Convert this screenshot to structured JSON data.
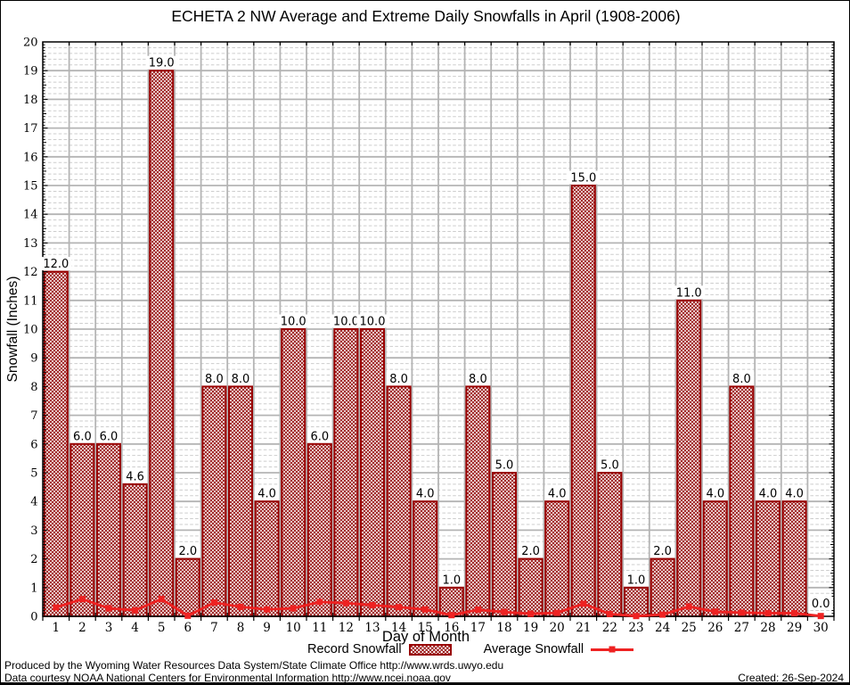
{
  "title": "ECHETA 2 NW Average and Extreme Daily Snowfalls in April (1908-2006)",
  "axes": {
    "xlabel": "Day of Month",
    "ylabel": "Snowfall (Inches)"
  },
  "legend": {
    "record_label": "Record Snowfall",
    "average_label": "Average Snowfall"
  },
  "footer": {
    "line1": "Produced by the Wyoming Water Resources Data System/State Climate Office http://www.wrds.uwyo.edu",
    "line2": "Data courtesy NOAA National Centers for Environmental Information http://www.ncei.noaa.gov",
    "created": "Created: 26-Sep-2024"
  },
  "colors": {
    "bar_border": "#990000",
    "bar_hatch": "#9c1c1c",
    "avg_line": "#ee2222",
    "grid_major": "#b4b4b4",
    "grid_minor": "#cdcdcd",
    "axis": "#000000"
  },
  "chart_data": {
    "type": "bar",
    "title": "ECHETA 2 NW Average and Extreme Daily Snowfalls in April (1908-2006)",
    "xlabel": "Day of Month",
    "ylabel": "Snowfall (Inches)",
    "ylim": [
      0,
      20
    ],
    "ytick_step": 1,
    "grid": true,
    "legend_position": "bottom",
    "categories": [
      1,
      2,
      3,
      4,
      5,
      6,
      7,
      8,
      9,
      10,
      11,
      12,
      13,
      14,
      15,
      16,
      17,
      18,
      19,
      20,
      21,
      22,
      23,
      24,
      25,
      26,
      27,
      28,
      29,
      30
    ],
    "series": [
      {
        "name": "Record Snowfall",
        "type": "bar",
        "values": [
          12.0,
          6.0,
          6.0,
          4.6,
          19.0,
          2.0,
          8.0,
          8.0,
          4.0,
          10.0,
          6.0,
          10.0,
          10.0,
          8.0,
          4.0,
          1.0,
          8.0,
          5.0,
          2.0,
          4.0,
          15.0,
          5.0,
          1.0,
          2.0,
          11.0,
          4.0,
          8.0,
          4.0,
          4.0,
          0.0
        ]
      },
      {
        "name": "Average Snowfall",
        "type": "line",
        "values": [
          0.31,
          0.6,
          0.28,
          0.21,
          0.6,
          0.02,
          0.48,
          0.33,
          0.24,
          0.28,
          0.5,
          0.46,
          0.39,
          0.32,
          0.24,
          0.04,
          0.23,
          0.15,
          0.09,
          0.12,
          0.44,
          0.08,
          0.01,
          0.06,
          0.34,
          0.16,
          0.13,
          0.11,
          0.11,
          0.01
        ]
      }
    ]
  }
}
